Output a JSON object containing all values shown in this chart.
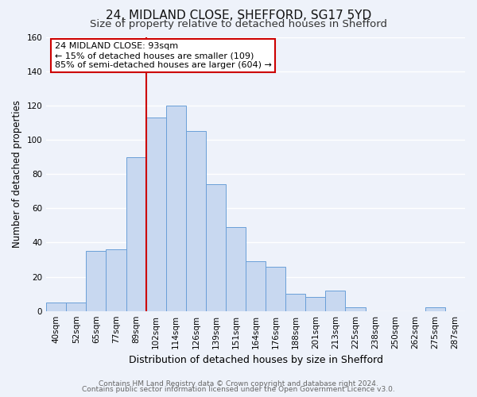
{
  "title": "24, MIDLAND CLOSE, SHEFFORD, SG17 5YD",
  "subtitle": "Size of property relative to detached houses in Shefford",
  "xlabel": "Distribution of detached houses by size in Shefford",
  "ylabel": "Number of detached properties",
  "bins": [
    "40sqm",
    "52sqm",
    "65sqm",
    "77sqm",
    "89sqm",
    "102sqm",
    "114sqm",
    "126sqm",
    "139sqm",
    "151sqm",
    "164sqm",
    "176sqm",
    "188sqm",
    "201sqm",
    "213sqm",
    "225sqm",
    "238sqm",
    "250sqm",
    "262sqm",
    "275sqm",
    "287sqm"
  ],
  "values": [
    5,
    5,
    35,
    36,
    90,
    113,
    120,
    105,
    74,
    49,
    29,
    26,
    10,
    8,
    12,
    2,
    0,
    0,
    0,
    2,
    0
  ],
  "bar_color": "#c8d8f0",
  "bar_edgecolor": "#6a9fd8",
  "vline_x_index": 4.5,
  "annotation_text_line1": "24 MIDLAND CLOSE: 93sqm",
  "annotation_text_line2": "← 15% of detached houses are smaller (109)",
  "annotation_text_line3": "85% of semi-detached houses are larger (604) →",
  "annotation_box_color": "#ffffff",
  "annotation_box_edgecolor": "#cc0000",
  "vline_color": "#cc0000",
  "ylim": [
    0,
    160
  ],
  "yticks": [
    0,
    20,
    40,
    60,
    80,
    100,
    120,
    140,
    160
  ],
  "footer1": "Contains HM Land Registry data © Crown copyright and database right 2024.",
  "footer2": "Contains public sector information licensed under the Open Government Licence v3.0.",
  "background_color": "#eef2fa",
  "plot_background_color": "#eef2fa",
  "title_fontsize": 11,
  "subtitle_fontsize": 9.5,
  "xlabel_fontsize": 9,
  "ylabel_fontsize": 8.5,
  "tick_fontsize": 7.5,
  "annotation_fontsize": 8,
  "footer_fontsize": 6.5,
  "grid_color": "#ffffff"
}
